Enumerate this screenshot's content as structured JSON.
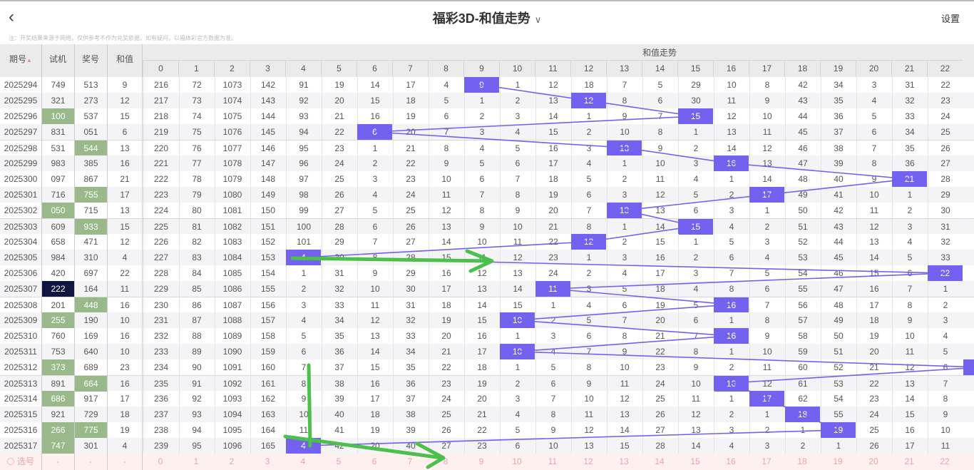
{
  "header": {
    "title": "福彩3D-和值走势",
    "settings": "设置",
    "notice": "注：开奖结果来源于网络，仅供参考不作为兑奖依据，如有疑问，以福体彩官方数据为准。"
  },
  "table": {
    "col_issue": "期号",
    "col_trial": "试机",
    "col_draw": "奖号",
    "col_sum": "和值",
    "group_title": "和值走势",
    "sum_columns": [
      "0",
      "1",
      "2",
      "3",
      "4",
      "5",
      "6",
      "7",
      "8",
      "9",
      "10",
      "11",
      "12",
      "13",
      "14",
      "15",
      "16",
      "17",
      "18",
      "19",
      "20",
      "21",
      "22"
    ],
    "rows": [
      {
        "issue": "2025294",
        "trial": "749",
        "draw": "513",
        "sum": 9,
        "miss": [
          216,
          72,
          1073,
          142,
          91,
          19,
          14,
          17,
          4,
          9,
          1,
          12,
          18,
          7,
          5,
          29,
          10,
          8,
          42,
          34,
          3,
          31,
          22
        ]
      },
      {
        "issue": "2025295",
        "trial": "321",
        "draw": "273",
        "sum": 12,
        "miss": [
          217,
          73,
          1074,
          143,
          92,
          20,
          15,
          18,
          5,
          1,
          2,
          13,
          12,
          8,
          6,
          30,
          11,
          9,
          43,
          35,
          4,
          32,
          23
        ]
      },
      {
        "issue": "2025296",
        "trial": "100",
        "draw": "537",
        "sum": 15,
        "trial_hl": "pair",
        "miss": [
          218,
          74,
          1075,
          144,
          93,
          21,
          16,
          19,
          6,
          2,
          3,
          14,
          1,
          9,
          7,
          15,
          12,
          10,
          44,
          36,
          5,
          33,
          24
        ]
      },
      {
        "issue": "2025297",
        "trial": "831",
        "draw": "051",
        "sum": 6,
        "miss": [
          219,
          75,
          1076,
          145,
          94,
          22,
          6,
          20,
          7,
          3,
          4,
          15,
          2,
          10,
          8,
          1,
          13,
          11,
          45,
          37,
          6,
          34,
          25
        ]
      },
      {
        "issue": "2025298",
        "trial": "531",
        "draw": "544",
        "sum": 13,
        "draw_hl": "pair",
        "miss": [
          220,
          76,
          1077,
          146,
          95,
          23,
          1,
          21,
          8,
          4,
          5,
          16,
          3,
          13,
          9,
          2,
          14,
          12,
          46,
          38,
          7,
          35,
          26
        ]
      },
      {
        "issue": "2025299",
        "trial": "983",
        "draw": "385",
        "sum": 16,
        "miss": [
          221,
          77,
          1078,
          147,
          96,
          24,
          2,
          22,
          9,
          5,
          6,
          17,
          4,
          1,
          10,
          3,
          16,
          13,
          47,
          39,
          8,
          36,
          27
        ]
      },
      {
        "issue": "2025300",
        "trial": "097",
        "draw": "867",
        "sum": 21,
        "miss": [
          222,
          78,
          1079,
          148,
          97,
          25,
          3,
          23,
          10,
          6,
          7,
          18,
          5,
          2,
          11,
          4,
          1,
          14,
          48,
          40,
          9,
          21,
          28
        ]
      },
      {
        "issue": "2025301",
        "trial": "716",
        "draw": "755",
        "sum": 17,
        "draw_hl": "pair",
        "miss": [
          223,
          79,
          1080,
          149,
          98,
          26,
          4,
          24,
          11,
          7,
          8,
          19,
          6,
          3,
          12,
          5,
          2,
          17,
          49,
          41,
          10,
          1,
          29
        ]
      },
      {
        "issue": "2025302",
        "trial": "050",
        "draw": "715",
        "sum": 13,
        "trial_hl": "pair",
        "miss": [
          224,
          80,
          1081,
          150,
          99,
          27,
          5,
          25,
          12,
          8,
          9,
          20,
          7,
          13,
          13,
          6,
          3,
          1,
          50,
          42,
          11,
          2,
          30
        ]
      },
      {
        "issue": "2025303",
        "trial": "609",
        "draw": "933",
        "sum": 15,
        "draw_hl": "pair",
        "miss": [
          225,
          81,
          1082,
          151,
          100,
          28,
          6,
          26,
          13,
          9,
          10,
          21,
          8,
          1,
          14,
          15,
          4,
          2,
          51,
          43,
          12,
          3,
          31
        ]
      },
      {
        "issue": "2025304",
        "trial": "658",
        "draw": "471",
        "sum": 12,
        "miss": [
          226,
          82,
          1083,
          152,
          101,
          29,
          7,
          27,
          14,
          10,
          11,
          22,
          12,
          2,
          15,
          1,
          5,
          3,
          52,
          44,
          13,
          4,
          32
        ]
      },
      {
        "issue": "2025305",
        "trial": "984",
        "draw": "310",
        "sum": 4,
        "miss": [
          227,
          83,
          1084,
          153,
          4,
          30,
          8,
          28,
          15,
          11,
          12,
          23,
          1,
          3,
          16,
          2,
          6,
          4,
          53,
          45,
          14,
          5,
          33
        ]
      },
      {
        "issue": "2025306",
        "trial": "420",
        "draw": "697",
        "sum": 22,
        "miss": [
          228,
          84,
          1085,
          154,
          1,
          31,
          9,
          29,
          16,
          12,
          13,
          24,
          2,
          4,
          17,
          3,
          7,
          5,
          54,
          46,
          15,
          6,
          22
        ]
      },
      {
        "issue": "2025307",
        "trial": "222",
        "draw": "164",
        "sum": 11,
        "trial_hl": "triple",
        "miss": [
          229,
          85,
          1086,
          155,
          2,
          32,
          10,
          30,
          17,
          13,
          14,
          11,
          3,
          5,
          18,
          4,
          8,
          6,
          55,
          47,
          16,
          7,
          1
        ]
      },
      {
        "issue": "2025308",
        "trial": "201",
        "draw": "448",
        "sum": 16,
        "draw_hl": "pair",
        "miss": [
          230,
          86,
          1087,
          156,
          3,
          33,
          11,
          31,
          18,
          14,
          15,
          1,
          4,
          6,
          19,
          5,
          16,
          7,
          56,
          48,
          17,
          8,
          2
        ]
      },
      {
        "issue": "2025309",
        "trial": "255",
        "draw": "190",
        "sum": 10,
        "trial_hl": "pair",
        "miss": [
          231,
          87,
          1088,
          157,
          4,
          34,
          12,
          32,
          19,
          15,
          10,
          2,
          5,
          7,
          20,
          6,
          1,
          8,
          57,
          49,
          18,
          9,
          3
        ]
      },
      {
        "issue": "2025310",
        "trial": "760",
        "draw": "169",
        "sum": 16,
        "miss": [
          232,
          88,
          1089,
          158,
          5,
          35,
          13,
          33,
          20,
          16,
          1,
          3,
          6,
          8,
          21,
          7,
          16,
          9,
          58,
          50,
          19,
          10,
          4
        ]
      },
      {
        "issue": "2025311",
        "trial": "753",
        "draw": "640",
        "sum": 10,
        "miss": [
          233,
          89,
          1090,
          159,
          6,
          36,
          14,
          34,
          21,
          17,
          10,
          4,
          7,
          9,
          22,
          8,
          1,
          10,
          59,
          51,
          20,
          11,
          5
        ]
      },
      {
        "issue": "2025312",
        "trial": "373",
        "draw": "689",
        "sum": 23,
        "trial_hl": "pair",
        "miss": [
          234,
          90,
          1091,
          160,
          7,
          37,
          15,
          35,
          22,
          18,
          1,
          5,
          8,
          10,
          23,
          9,
          2,
          11,
          60,
          52,
          21,
          12,
          6
        ]
      },
      {
        "issue": "2025313",
        "trial": "891",
        "draw": "664",
        "sum": 16,
        "draw_hl": "pair",
        "miss": [
          235,
          91,
          1092,
          161,
          8,
          38,
          16,
          36,
          23,
          19,
          2,
          6,
          9,
          11,
          24,
          10,
          16,
          12,
          61,
          53,
          22,
          13,
          7
        ]
      },
      {
        "issue": "2025314",
        "trial": "686",
        "draw": "917",
        "sum": 17,
        "trial_hl": "pair",
        "miss": [
          236,
          92,
          1093,
          162,
          9,
          39,
          17,
          37,
          24,
          20,
          3,
          7,
          10,
          12,
          25,
          11,
          1,
          17,
          62,
          54,
          23,
          14,
          8
        ]
      },
      {
        "issue": "2025315",
        "trial": "921",
        "draw": "729",
        "sum": 18,
        "miss": [
          237,
          93,
          1094,
          163,
          10,
          40,
          18,
          38,
          25,
          21,
          4,
          8,
          11,
          13,
          26,
          12,
          2,
          1,
          18,
          55,
          24,
          15,
          9
        ]
      },
      {
        "issue": "2025316",
        "trial": "266",
        "draw": "775",
        "sum": 19,
        "trial_hl": "pair",
        "draw_hl": "pair",
        "miss": [
          238,
          94,
          1095,
          164,
          11,
          41,
          19,
          39,
          26,
          22,
          5,
          9,
          12,
          14,
          27,
          13,
          3,
          2,
          1,
          19,
          25,
          16,
          10
        ]
      },
      {
        "issue": "2025317",
        "trial": "747",
        "draw": "301",
        "sum": 4,
        "trial_hl": "pair",
        "miss": [
          239,
          95,
          1096,
          165,
          4,
          42,
          20,
          40,
          27,
          23,
          6,
          10,
          13,
          15,
          28,
          14,
          4,
          3,
          2,
          1,
          26,
          17,
          11
        ]
      }
    ],
    "footer": {
      "select_label": "选号",
      "dash": "-",
      "numbers": [
        "0",
        "1",
        "2",
        "3",
        "4",
        "5",
        "6",
        "7",
        "8",
        "9",
        "10",
        "11",
        "12",
        "13",
        "14",
        "15",
        "16",
        "17",
        "18",
        "19",
        "20",
        "21",
        "22"
      ]
    }
  },
  "colors": {
    "hit": "#7361ef",
    "pair": "#9ab98b",
    "triple": "#0e1540",
    "annotation": "#4cbf4c"
  }
}
